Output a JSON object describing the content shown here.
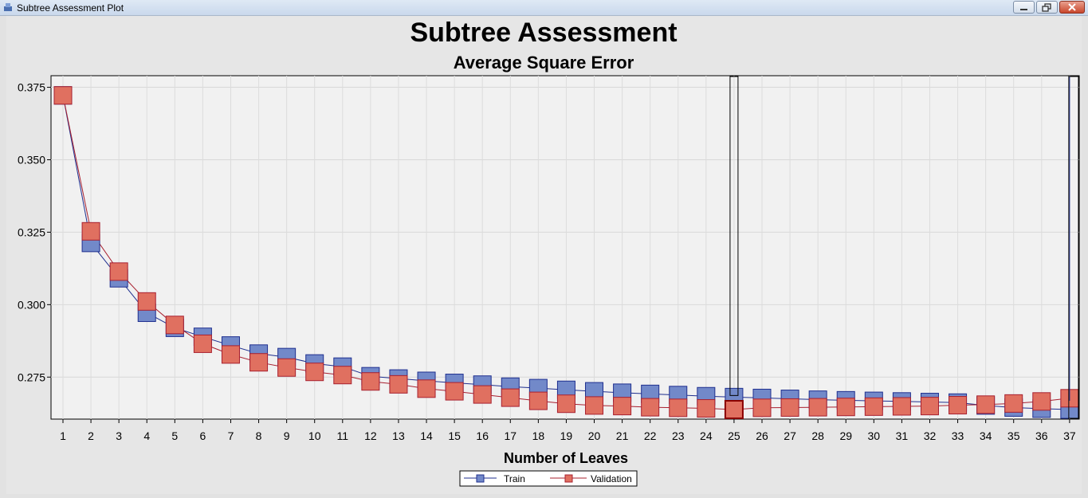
{
  "window": {
    "title": "Subtree Assessment Plot"
  },
  "chart_data": {
    "type": "line",
    "title": "Subtree Assessment",
    "subtitle": "Average Square Error",
    "xlabel": "Number of Leaves",
    "ylabel": "",
    "categories": [
      1,
      2,
      3,
      4,
      5,
      6,
      7,
      8,
      9,
      10,
      11,
      12,
      13,
      14,
      15,
      16,
      17,
      18,
      19,
      20,
      21,
      22,
      23,
      24,
      25,
      26,
      27,
      28,
      29,
      30,
      31,
      32,
      33,
      34,
      35,
      36,
      37
    ],
    "ylim": [
      0.2605,
      0.379
    ],
    "yticks": [
      "0.275",
      "0.300",
      "0.325",
      "0.350",
      "0.375"
    ],
    "ytick_values": [
      0.275,
      0.3,
      0.325,
      0.35,
      0.375
    ],
    "grid": true,
    "legend_position": "bottom-center",
    "selected_leaves": 25,
    "series": [
      {
        "name": "Train",
        "color": "#7289c9",
        "line_color": "#1f2f8f",
        "values": [
          0.3722,
          0.3213,
          0.3091,
          0.2972,
          0.292,
          0.2889,
          0.2859,
          0.2831,
          0.2819,
          0.2797,
          0.2786,
          0.2753,
          0.2745,
          0.2737,
          0.273,
          0.2724,
          0.2717,
          0.2712,
          0.2706,
          0.2701,
          0.2696,
          0.2692,
          0.2688,
          0.2684,
          0.2681,
          0.2678,
          0.2675,
          0.2672,
          0.267,
          0.2668,
          0.2666,
          0.2664,
          0.2662,
          0.2652,
          0.2645,
          0.2641,
          0.2638
        ]
      },
      {
        "name": "Validation",
        "color": "#e07060",
        "line_color": "#a8202f",
        "values": [
          0.3722,
          0.3253,
          0.3114,
          0.3011,
          0.293,
          0.2865,
          0.2828,
          0.2801,
          0.2783,
          0.2768,
          0.2757,
          0.2735,
          0.2725,
          0.271,
          0.2701,
          0.269,
          0.2679,
          0.2668,
          0.2658,
          0.2652,
          0.265,
          0.2646,
          0.2644,
          0.2642,
          0.2638,
          0.2644,
          0.2645,
          0.2646,
          0.2647,
          0.2648,
          0.2649,
          0.265,
          0.2653,
          0.2655,
          0.2659,
          0.2666,
          0.2677
        ]
      }
    ]
  }
}
